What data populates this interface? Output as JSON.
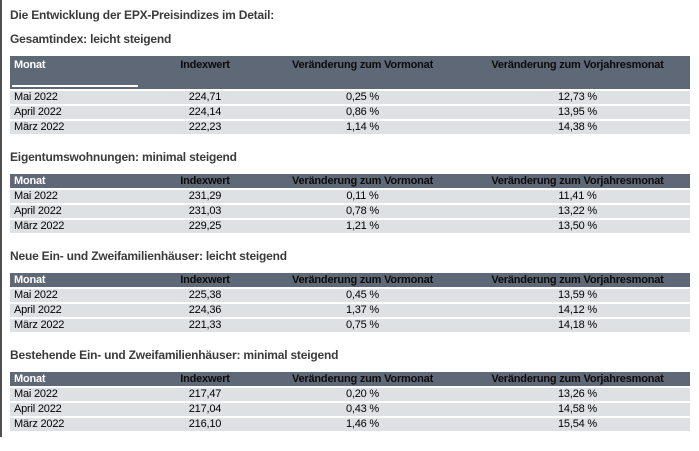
{
  "page": {
    "title": "Die Entwicklung der EPX-Preisindizes im Detail:"
  },
  "columns": [
    "Monat",
    "Indexwert",
    "Veränderung zum Vormonat",
    "Veränderung zum Vorjahresmonat"
  ],
  "sections": [
    {
      "title": "Gesamtindex: leicht steigend",
      "rows": [
        [
          "Mai 2022",
          "224,71",
          "0,25 %",
          "12,73 %"
        ],
        [
          "April 2022",
          "224,14",
          "0,86 %",
          "13,95 %"
        ],
        [
          "März 2022",
          "222,23",
          "1,14 %",
          "14,38 %"
        ]
      ]
    },
    {
      "title": "Eigentumswohnungen: minimal steigend",
      "rows": [
        [
          "Mai 2022",
          "231,29",
          "0,11 %",
          "11,41 %"
        ],
        [
          "April 2022",
          "231,03",
          "0,78 %",
          "13,22 %"
        ],
        [
          "März 2022",
          "229,25",
          "1,21 %",
          "13,50 %"
        ]
      ]
    },
    {
      "title": "Neue Ein- und Zweifamilienhäuser: leicht steigend",
      "rows": [
        [
          "Mai 2022",
          "225,38",
          "0,45 %",
          "13,59 %"
        ],
        [
          "April 2022",
          "224,36",
          "1,37 %",
          "14,12 %"
        ],
        [
          "März 2022",
          "221,33",
          "0,75 %",
          "14,18 %"
        ]
      ]
    },
    {
      "title": "Bestehende Ein- und Zweifamilienhäuser: minimal steigend",
      "rows": [
        [
          "Mai 2022",
          "217,47",
          "0,20 %",
          "13,26 %"
        ],
        [
          "April 2022",
          "217,04",
          "0,43 %",
          "14,58 %"
        ],
        [
          "März 2022",
          "216,10",
          "1,46 %",
          "15,54 %"
        ]
      ]
    }
  ],
  "colors": {
    "header_bg": "#5e6877",
    "header_text_first": "#ffffff",
    "header_text": "#0b0b0b",
    "row_bg": "#dee1e4",
    "heading_text": "#3b3b3b",
    "edge_color": "#4f4f4f"
  }
}
